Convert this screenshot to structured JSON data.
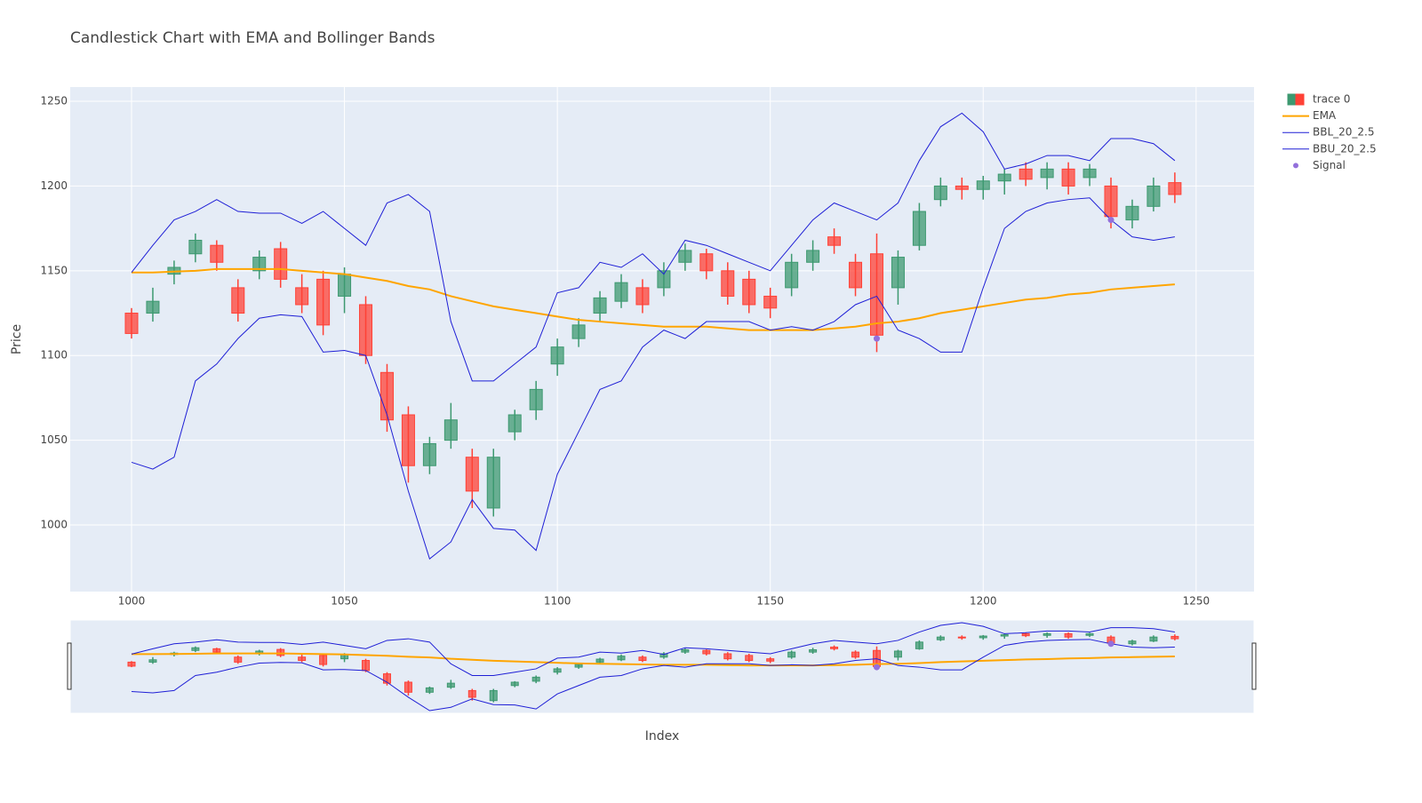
{
  "chart_data": {
    "type": "candlestick",
    "title": "Candlestick Chart with EMA and Bollinger Bands",
    "x_label": "Index",
    "y_label": "Price",
    "xlim": [
      985.6,
      1263.6
    ],
    "ylim": [
      960.7,
      1258.4
    ],
    "xticks": [
      1000,
      1050,
      1100,
      1150,
      1200,
      1250
    ],
    "yticks": [
      1000,
      1050,
      1100,
      1150,
      1200,
      1250
    ],
    "grid": true,
    "x": [
      1000,
      1005,
      1010,
      1015,
      1020,
      1025,
      1030,
      1035,
      1040,
      1045,
      1050,
      1055,
      1060,
      1065,
      1070,
      1075,
      1080,
      1085,
      1090,
      1095,
      1100,
      1105,
      1110,
      1115,
      1120,
      1125,
      1130,
      1135,
      1140,
      1145,
      1150,
      1155,
      1160,
      1165,
      1170,
      1175,
      1180,
      1185,
      1190,
      1195,
      1200,
      1205,
      1210,
      1215,
      1220,
      1225,
      1230,
      1235,
      1240,
      1245
    ],
    "series": [
      {
        "name": "trace 0",
        "type": "candlestick",
        "increasing_color": "#3d9970",
        "decreasing_color": "#ff4136",
        "open": [
          1125,
          1125,
          1148,
          1160,
          1165,
          1140,
          1150,
          1163,
          1140,
          1145,
          1135,
          1130,
          1090,
          1065,
          1035,
          1050,
          1040,
          1010,
          1055,
          1068,
          1095,
          1110,
          1125,
          1132,
          1140,
          1140,
          1155,
          1160,
          1150,
          1145,
          1135,
          1140,
          1155,
          1170,
          1155,
          1160,
          1140,
          1165,
          1192,
          1200,
          1198,
          1203,
          1210,
          1205,
          1210,
          1205,
          1200,
          1180,
          1188,
          1202
        ],
        "high": [
          1128,
          1140,
          1156,
          1172,
          1168,
          1145,
          1162,
          1167,
          1148,
          1150,
          1152,
          1135,
          1095,
          1070,
          1052,
          1072,
          1045,
          1045,
          1068,
          1085,
          1110,
          1122,
          1138,
          1148,
          1145,
          1155,
          1166,
          1163,
          1155,
          1150,
          1140,
          1160,
          1168,
          1175,
          1160,
          1172,
          1162,
          1190,
          1205,
          1205,
          1206,
          1210,
          1214,
          1214,
          1214,
          1213,
          1205,
          1192,
          1205,
          1208
        ],
        "low": [
          1110,
          1120,
          1142,
          1155,
          1150,
          1120,
          1145,
          1140,
          1125,
          1112,
          1125,
          1095,
          1055,
          1025,
          1030,
          1045,
          1010,
          1005,
          1050,
          1062,
          1088,
          1105,
          1120,
          1128,
          1125,
          1135,
          1150,
          1145,
          1130,
          1125,
          1122,
          1135,
          1150,
          1160,
          1135,
          1102,
          1130,
          1162,
          1188,
          1192,
          1192,
          1195,
          1200,
          1198,
          1195,
          1200,
          1175,
          1175,
          1185,
          1190
        ],
        "close": [
          1113,
          1132,
          1152,
          1168,
          1155,
          1125,
          1158,
          1145,
          1130,
          1118,
          1148,
          1100,
          1062,
          1035,
          1048,
          1062,
          1020,
          1040,
          1065,
          1080,
          1105,
          1118,
          1134,
          1143,
          1130,
          1150,
          1162,
          1150,
          1135,
          1130,
          1128,
          1155,
          1162,
          1165,
          1140,
          1112,
          1158,
          1185,
          1200,
          1198,
          1203,
          1207,
          1204,
          1210,
          1200,
          1210,
          1182,
          1188,
          1200,
          1195
        ]
      },
      {
        "name": "EMA",
        "type": "line",
        "color": "#ffa500",
        "values": [
          1149,
          1149,
          1149.5,
          1150,
          1151,
          1151,
          1151,
          1151,
          1150,
          1149,
          1148,
          1146,
          1144,
          1141,
          1139,
          1135,
          1132,
          1129,
          1127,
          1125,
          1123,
          1121,
          1120,
          1119,
          1118,
          1117,
          1117,
          1117,
          1116,
          1115,
          1115,
          1115,
          1115,
          1116,
          1117,
          1119,
          1120,
          1122,
          1125,
          1127,
          1129,
          1131,
          1133,
          1134,
          1136,
          1137,
          1139,
          1140,
          1141,
          1142
        ]
      },
      {
        "name": "BBL_20_2.5",
        "type": "line",
        "color": "#1f1fd6",
        "values": [
          1037,
          1033,
          1040,
          1085,
          1095,
          1110,
          1122,
          1124,
          1123,
          1102,
          1103,
          1100,
          1065,
          1020,
          980,
          990,
          1015,
          998,
          997,
          985,
          1030,
          1055,
          1080,
          1085,
          1105,
          1115,
          1110,
          1120,
          1120,
          1120,
          1115,
          1117,
          1115,
          1120,
          1130,
          1135,
          1115,
          1110,
          1102,
          1102,
          1140,
          1175,
          1185,
          1190,
          1192,
          1193,
          1180,
          1170,
          1168,
          1170
        ]
      },
      {
        "name": "BBU_20_2.5",
        "type": "line",
        "color": "#1f1fd6",
        "values": [
          1149,
          1165,
          1180,
          1185,
          1192,
          1185,
          1184,
          1184,
          1178,
          1185,
          1175,
          1165,
          1190,
          1195,
          1185,
          1120,
          1085,
          1085,
          1095,
          1105,
          1137,
          1140,
          1155,
          1152,
          1160,
          1148,
          1168,
          1165,
          1160,
          1155,
          1150,
          1165,
          1180,
          1190,
          1185,
          1180,
          1190,
          1215,
          1235,
          1243,
          1232,
          1210,
          1213,
          1218,
          1218,
          1215,
          1228,
          1228,
          1225,
          1215
        ]
      },
      {
        "name": "Signal",
        "type": "scatter",
        "color": "#9370db",
        "x": [
          1175,
          1230
        ],
        "values": [
          1110,
          1180
        ]
      }
    ]
  }
}
